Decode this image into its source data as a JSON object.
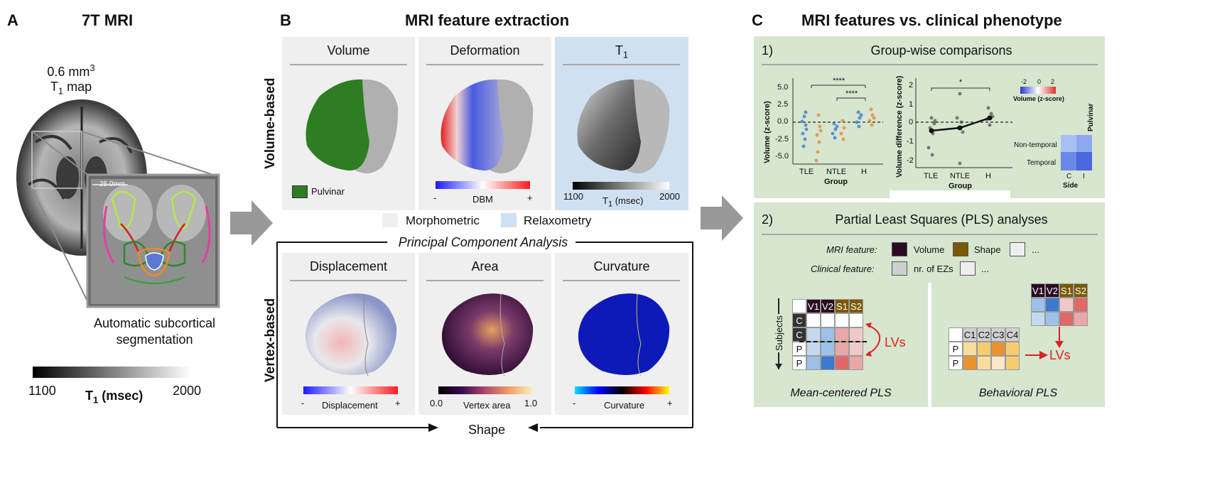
{
  "panel_a": {
    "letter": "A",
    "title": "7T MRI",
    "resolution": "0.6 mm",
    "resolution_sup": "3",
    "map_label": "T",
    "map_sub": "1",
    "map_suffix": " map",
    "scale_text": "25.0mm",
    "caption_line1": "Automatic subcortical",
    "caption_line2": "segmentation",
    "colorbar_min": "1100",
    "colorbar_max": "2000",
    "colorbar_label": "T",
    "colorbar_label_sub": "1",
    "colorbar_label_suffix": " (msec)"
  },
  "panel_b": {
    "letter": "B",
    "title": "MRI feature extraction",
    "row1_label": "Volume-based",
    "row2_label": "Vertex-based",
    "volume": {
      "title": "Volume",
      "legend": "Pulvinar"
    },
    "deformation": {
      "title": "Deformation",
      "min": "-",
      "label": "DBM",
      "max": "+"
    },
    "t1": {
      "title": "T",
      "title_sub": "1",
      "min": "1100",
      "label": "T",
      "label_sub": "1",
      "label_suffix": " (msec)",
      "max": "2000"
    },
    "legend_morph": "Morphometric",
    "legend_relax": "Relaxometry",
    "pca_title": "Principal Component Analysis",
    "displacement": {
      "title": "Displacement",
      "min": "-",
      "label": "Displacement",
      "max": "+"
    },
    "area": {
      "title": "Area",
      "min": "0.0",
      "label": "Vertex area",
      "max": "1.0"
    },
    "curvature": {
      "title": "Curvature",
      "min": "-",
      "label": "Curvature",
      "max": "+"
    },
    "shape_label": "Shape"
  },
  "panel_c": {
    "letter": "C",
    "title": "MRI features vs. clinical phenotype",
    "sec1_num": "1)",
    "sec1_title": "Group-wise comparisons",
    "plot1": {
      "ylabel": "Volume (z-score)",
      "yticks": [
        "5.0",
        "2.5",
        "0.0",
        "-2.5",
        "-5.0"
      ],
      "groups": [
        "TLE",
        "NTLE",
        "H"
      ],
      "xlabel": "Group",
      "sig1": "****",
      "sig2": "****"
    },
    "plot2": {
      "ylabel": "Volume difference (z-score)",
      "yticks": [
        "2",
        "1",
        "0",
        "-1",
        "-2"
      ],
      "groups": [
        "TLE",
        "NTLE",
        "H"
      ],
      "xlabel": "Group",
      "sig1": "*"
    },
    "heatmap": {
      "cbar_ticks": [
        "-2",
        "0",
        "2"
      ],
      "cbar_label": "Volume (z-score)",
      "col_title": "Pulvinar",
      "rows": [
        "Non-temporal",
        "Temporal"
      ],
      "cols": [
        "C",
        "I"
      ],
      "xlabel": "Side"
    },
    "sec2_num": "2)",
    "sec2_title": "Partial Least Squares (PLS) analyses",
    "mri_feature_label": "MRI feature:",
    "mri_legend": [
      "Volume",
      "Shape",
      "..."
    ],
    "clinical_feature_label": "Clinical feature:",
    "clinical_legend": [
      "nr. of EZs",
      "..."
    ],
    "subjects_label": "Subjects",
    "mc_cols": [
      "V1",
      "V2",
      "S1",
      "S2"
    ],
    "mc_rows": [
      "C",
      "C",
      "P",
      "P"
    ],
    "lvs1": "LVs",
    "mc_title": "Mean-centered PLS",
    "beh_cols_top": [
      "V1",
      "V2",
      "S1",
      "S2"
    ],
    "beh_cols": [
      "C1",
      "C2",
      "C3",
      "C4"
    ],
    "beh_rows": [
      "P",
      "P"
    ],
    "lvs2": "LVs",
    "beh_title": "Behavioral PLS"
  },
  "colors": {
    "pulvinar_green": "#2e7d22",
    "accent_red": "#e02020",
    "volume_dark": "#2a0a22",
    "shape_brown": "#7a5a08"
  }
}
